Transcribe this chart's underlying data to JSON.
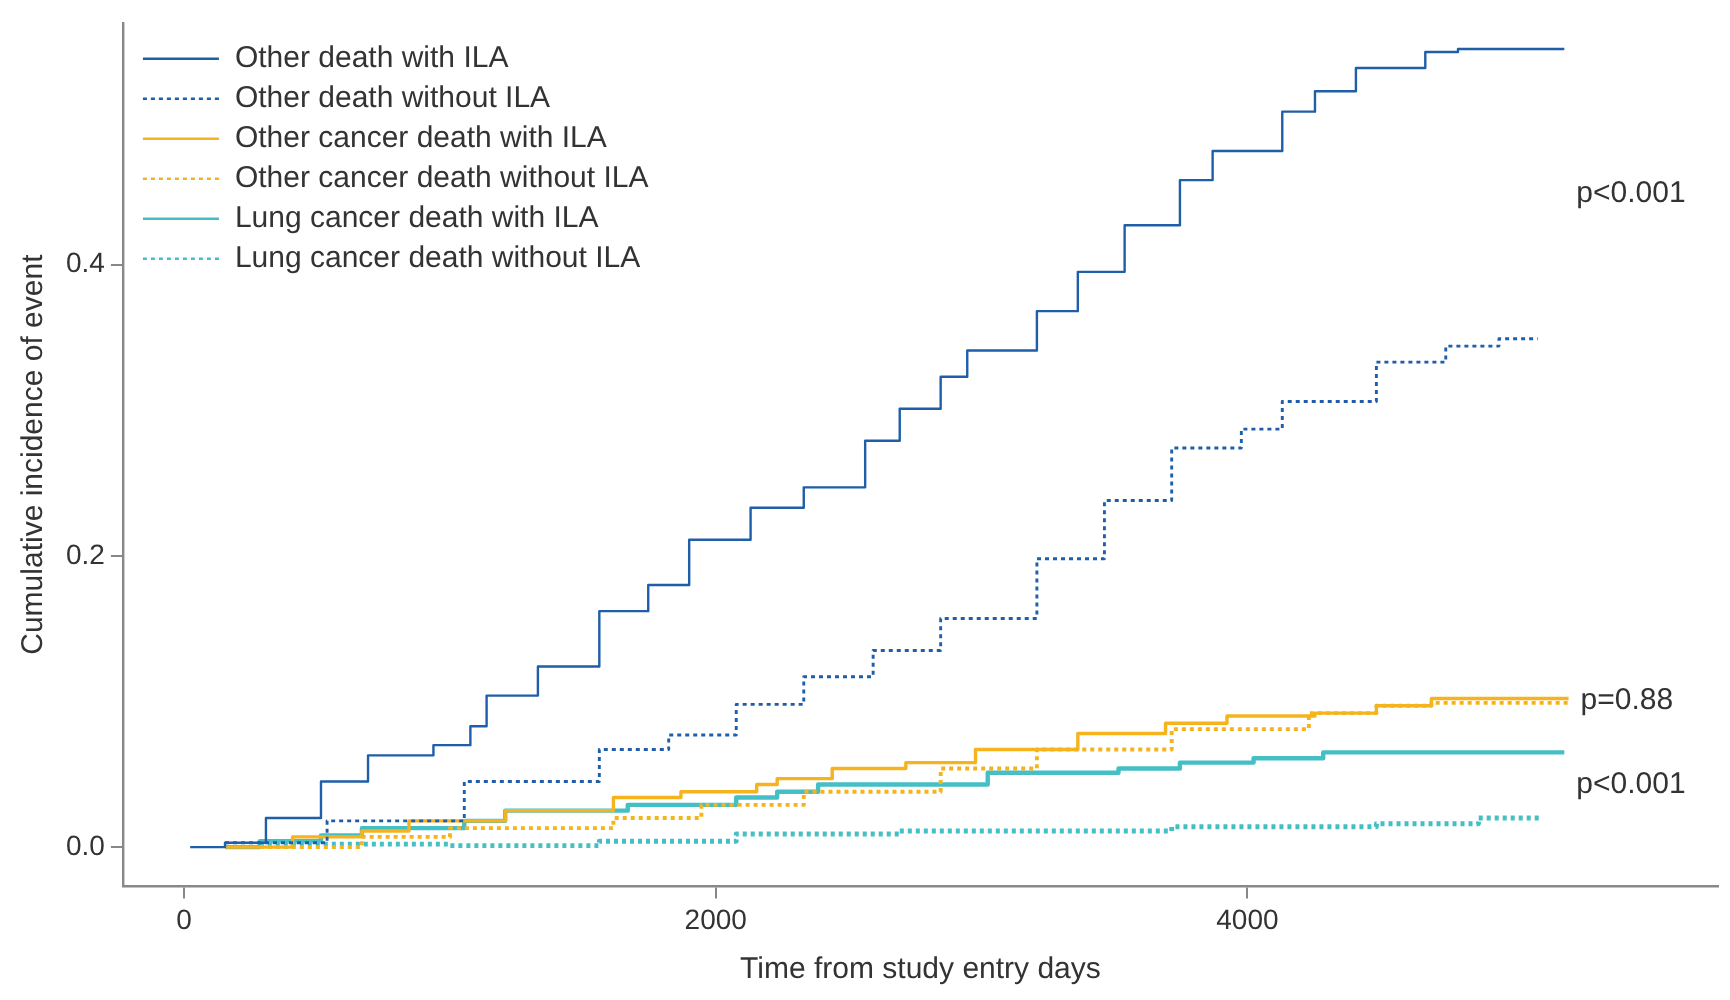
{
  "chart_data": {
    "type": "step",
    "xlabel": "Time from study entry days",
    "ylabel": "Cumulative incidence of event",
    "xlim": [
      -230,
      5770
    ],
    "xticks": [
      0,
      2000,
      4000
    ],
    "ylim": [
      -0.027,
      0.566
    ],
    "yticks": [
      {
        "value": 0,
        "label": "0.0"
      },
      {
        "value": 0.2,
        "label": "0.2"
      },
      {
        "value": 0.4,
        "label": "0.4"
      }
    ],
    "grid": false,
    "legend": "top left",
    "marker": "none",
    "series": [
      {
        "name": "Other death with ILA",
        "color": "#1f5ea8",
        "line_style": "solid",
        "x": [
          23,
          154,
          308,
          515,
          692,
          938,
          1077,
          1138,
          1331,
          1562,
          1746,
          1900,
          2131,
          2331,
          2562,
          2692,
          2846,
          2946,
          3208,
          3362,
          3538,
          3746,
          3869,
          4131,
          4254,
          4408,
          4669,
          4792,
          5192
        ],
        "values": [
          0,
          0.003,
          0.02,
          0.045,
          0.063,
          0.07,
          0.083,
          0.104,
          0.124,
          0.162,
          0.18,
          0.211,
          0.233,
          0.247,
          0.279,
          0.301,
          0.323,
          0.341,
          0.368,
          0.395,
          0.427,
          0.458,
          0.478,
          0.505,
          0.519,
          0.535,
          0.546,
          0.548,
          0.548
        ]
      },
      {
        "name": "Other death without ILA",
        "color": "#1f5ea8",
        "line_style": "dotted",
        "x": [
          154,
          538,
          1054,
          1562,
          1823,
          2077,
          2331,
          2592,
          2846,
          3208,
          3462,
          3715,
          3977,
          4131,
          4485,
          4746,
          4946,
          5092
        ],
        "values": [
          0.003,
          0.018,
          0.045,
          0.067,
          0.077,
          0.098,
          0.117,
          0.135,
          0.157,
          0.198,
          0.238,
          0.274,
          0.287,
          0.306,
          0.333,
          0.344,
          0.349,
          0.349
        ]
      },
      {
        "name": "Other cancer death with ILA",
        "color": "#f5b41e",
        "line_style": "solid",
        "x": [
          154,
          408,
          669,
          846,
          1208,
          1615,
          1869,
          2154,
          2231,
          2438,
          2715,
          2977,
          3362,
          3692,
          3923,
          4254,
          4485,
          4692,
          5208
        ],
        "values": [
          0,
          0.007,
          0.011,
          0.018,
          0.025,
          0.034,
          0.038,
          0.043,
          0.047,
          0.054,
          0.058,
          0.067,
          0.078,
          0.085,
          0.09,
          0.092,
          0.097,
          0.102,
          0.102
        ]
      },
      {
        "name": "Other cancer death without ILA",
        "color": "#f5b41e",
        "line_style": "dotted",
        "x": [
          285,
          669,
          1000,
          1615,
          1946,
          2331,
          2846,
          3208,
          3715,
          4231,
          4485,
          4692,
          5208
        ],
        "values": [
          0,
          0.007,
          0.013,
          0.02,
          0.029,
          0.038,
          0.054,
          0.067,
          0.081,
          0.092,
          0.097,
          0.099,
          0.099
        ]
      },
      {
        "name": "Lung cancer death with ILA",
        "color": "#45bfc6",
        "line_style": "solid",
        "x": [
          154,
          285,
          515,
          669,
          1054,
          1208,
          1669,
          2077,
          2231,
          2385,
          2846,
          2923,
          3023,
          3515,
          3746,
          4023,
          4285,
          5192
        ],
        "values": [
          0,
          0.004,
          0.008,
          0.013,
          0.018,
          0.025,
          0.029,
          0.034,
          0.038,
          0.043,
          0.043,
          0.043,
          0.051,
          0.054,
          0.058,
          0.061,
          0.065,
          0.065
        ]
      },
      {
        "name": "Lung cancer death without ILA",
        "color": "#45bfc6",
        "line_style": "dotted",
        "x": [
          285,
          1000,
          1562,
          2077,
          2692,
          3715,
          4485,
          4869,
          5100
        ],
        "values": [
          0.002,
          0.001,
          0.004,
          0.009,
          0.011,
          0.014,
          0.016,
          0.02,
          0.02
        ]
      }
    ],
    "annotations": [
      "p<0.001",
      "p=0.88",
      "p<0.001"
    ]
  }
}
